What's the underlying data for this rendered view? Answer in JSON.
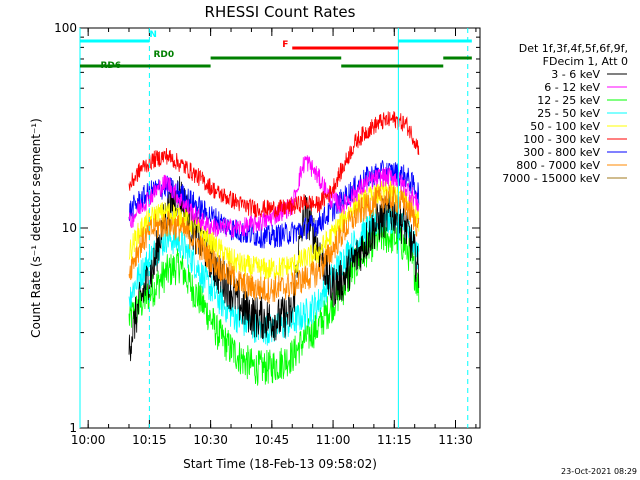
{
  "chart_data": {
    "type": "line",
    "title": "RHESSI Count Rates",
    "xlabel": "Start Time (18-Feb-13 09:58:02)",
    "ylabel": "Count Rate (s⁻¹ detector segment⁻¹)",
    "y_scale": "log",
    "ylim": [
      1,
      100
    ],
    "xlim_minutes_after_0958": [
      0,
      98
    ],
    "x_ticks": [
      "10:00",
      "10:15",
      "10:30",
      "10:45",
      "11:00",
      "11:15",
      "11:30"
    ],
    "y_ticks": [
      "1",
      "10",
      "100"
    ],
    "legend_header": [
      "Det 1f,3f,4f,5f,6f,9f,",
      "FDecim 1, Att 0"
    ],
    "legend_position": "right",
    "timestamp": "23-Oct-2021 08:29",
    "data_start": "10:10",
    "data_end": "11:21",
    "series": [
      {
        "name": "3 - 6 keV",
        "color": "#000000",
        "values": [
          2.5,
          4.5,
          6.5,
          12,
          15,
          10,
          8,
          6,
          5,
          4,
          3.6,
          3.5,
          3.5,
          3.8,
          12,
          8,
          5,
          5.5,
          7,
          9,
          11,
          12,
          10,
          6
        ]
      },
      {
        "name": "6 - 12 keV",
        "color": "#ff00ff",
        "values": [
          10.5,
          13,
          15,
          17,
          14,
          12,
          10.5,
          10,
          10,
          10,
          10.5,
          11,
          12,
          13,
          22,
          18,
          14,
          13,
          15,
          17,
          18,
          18,
          16,
          13
        ]
      },
      {
        "name": "12 - 25 keV",
        "color": "#00ff00",
        "values": [
          3.5,
          4.2,
          5,
          6,
          6.5,
          5,
          4,
          3,
          2.5,
          2.2,
          2,
          2,
          2.1,
          2.3,
          2.8,
          3.2,
          4,
          5,
          6.5,
          8,
          9,
          9,
          8,
          5
        ]
      },
      {
        "name": "25 - 50 keV",
        "color": "#00ffff",
        "values": [
          4.5,
          6,
          7.5,
          9,
          8.5,
          7,
          5.5,
          4.5,
          3.8,
          3.4,
          3.2,
          3.1,
          3.2,
          3.4,
          3.7,
          4.2,
          5.5,
          7,
          8.5,
          10,
          11,
          11,
          10,
          7
        ]
      },
      {
        "name": "50 - 100 keV",
        "color": "#ffff00",
        "values": [
          7.5,
          10,
          11.5,
          12,
          11.5,
          10.5,
          9,
          8,
          7,
          6.5,
          6.3,
          6.2,
          6.3,
          6.5,
          7,
          7.5,
          9,
          11,
          13,
          14,
          15,
          15,
          14,
          11
        ]
      },
      {
        "name": "100 - 300 keV",
        "color": "#ff0000",
        "values": [
          16,
          20,
          22,
          23,
          21,
          19,
          17,
          15,
          14,
          13,
          12.5,
          12.5,
          12.5,
          12.8,
          13.5,
          13,
          15,
          20,
          27,
          31,
          34,
          35,
          33,
          25
        ]
      },
      {
        "name": "300 - 800 keV",
        "color": "#0000ff",
        "values": [
          12,
          14,
          15.5,
          16,
          15,
          13.5,
          12,
          11,
          10,
          9.5,
          9.2,
          9,
          9.2,
          9.5,
          10,
          10.5,
          12,
          14,
          16,
          18,
          19,
          19,
          18,
          15
        ]
      },
      {
        "name": "800 - 7000 keV",
        "color": "#ff8800",
        "values": [
          6,
          8.5,
          10,
          10.5,
          10,
          9,
          7.5,
          6.5,
          5.8,
          5.2,
          5,
          4.9,
          5,
          5.2,
          5.6,
          6,
          7.5,
          9.5,
          11.5,
          13,
          14,
          14,
          13,
          10
        ]
      },
      {
        "name": "7000 - 15000 keV",
        "color": "#a0781e",
        "values": [],
        "note": "legend entry only; no visible trace"
      }
    ],
    "flag_bars": [
      {
        "label": "N",
        "color": "#00ffff",
        "segments": [
          [
            "09:58",
            "10:15"
          ],
          [
            "11:16",
            "11:34"
          ]
        ]
      },
      {
        "label": "F",
        "color": "#ff0000",
        "segments": [
          [
            "10:50",
            "11:16"
          ]
        ]
      },
      {
        "label": "RD0",
        "color": "#008000",
        "segments": [
          [
            "10:30",
            "11:02"
          ],
          [
            "11:27",
            "11:34"
          ]
        ]
      },
      {
        "label": "RD6",
        "color": "#008000",
        "segments": [
          [
            "09:58",
            "10:30"
          ],
          [
            "11:02",
            "11:27"
          ]
        ]
      }
    ],
    "vertical_lines": [
      {
        "time": "09:58",
        "color": "#00ffff",
        "style": "solid"
      },
      {
        "time": "10:15",
        "color": "#00ffff",
        "style": "dashed"
      },
      {
        "time": "11:16",
        "color": "#00ffff",
        "style": "solid"
      },
      {
        "time": "11:33",
        "color": "#00ffff",
        "style": "dashed"
      }
    ]
  }
}
